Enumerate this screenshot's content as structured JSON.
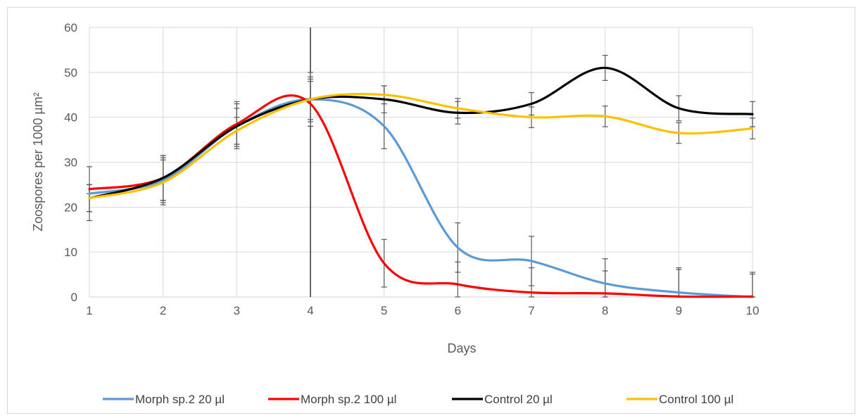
{
  "chart_data": {
    "type": "line",
    "title": "",
    "xlabel": "Days",
    "ylabel": "Zoospores per 1000 µm²",
    "x": [
      1,
      2,
      3,
      4,
      5,
      6,
      7,
      8,
      9,
      10
    ],
    "xlim": [
      1,
      10
    ],
    "ylim": [
      0,
      60
    ],
    "yticks": [
      0,
      10,
      20,
      30,
      40,
      50,
      60
    ],
    "grid": true,
    "smoothed": true,
    "vertical_marker_x": 4,
    "legend_position": "bottom",
    "series": [
      {
        "name": "Morph sp.2 20 µl",
        "color": "#5b9bd5",
        "values": [
          23,
          26,
          38,
          44,
          38,
          11,
          8,
          3,
          1,
          0
        ],
        "errors": [
          6,
          5,
          4,
          5,
          5,
          5.5,
          5.5,
          5.5,
          5.5,
          5.5
        ]
      },
      {
        "name": "Morph sp.2 100 µl",
        "color": "#ff0000",
        "values": [
          24,
          26.5,
          38.5,
          43,
          7.5,
          2.8,
          1,
          0.8,
          0.1,
          0.1
        ],
        "errors": [
          1,
          5,
          5,
          5,
          5.3,
          5,
          5.5,
          5,
          6,
          5
        ]
      },
      {
        "name": "Control 20 µl",
        "color": "#000000",
        "values": [
          22,
          26.5,
          38,
          44,
          44,
          41,
          43,
          51,
          42,
          40.7
        ],
        "errors": [
          3,
          5,
          5,
          4.5,
          3,
          2.5,
          2.5,
          2.8,
          2.8,
          2.8
        ]
      },
      {
        "name": "Control 100 µl",
        "color": "#ffc000",
        "values": [
          22,
          25.5,
          37,
          44,
          45,
          42,
          40,
          40.2,
          36.5,
          37.5
        ],
        "errors": [
          3,
          5,
          3,
          6,
          2,
          2.2,
          2.3,
          2.3,
          2.3,
          2.3
        ]
      }
    ]
  }
}
